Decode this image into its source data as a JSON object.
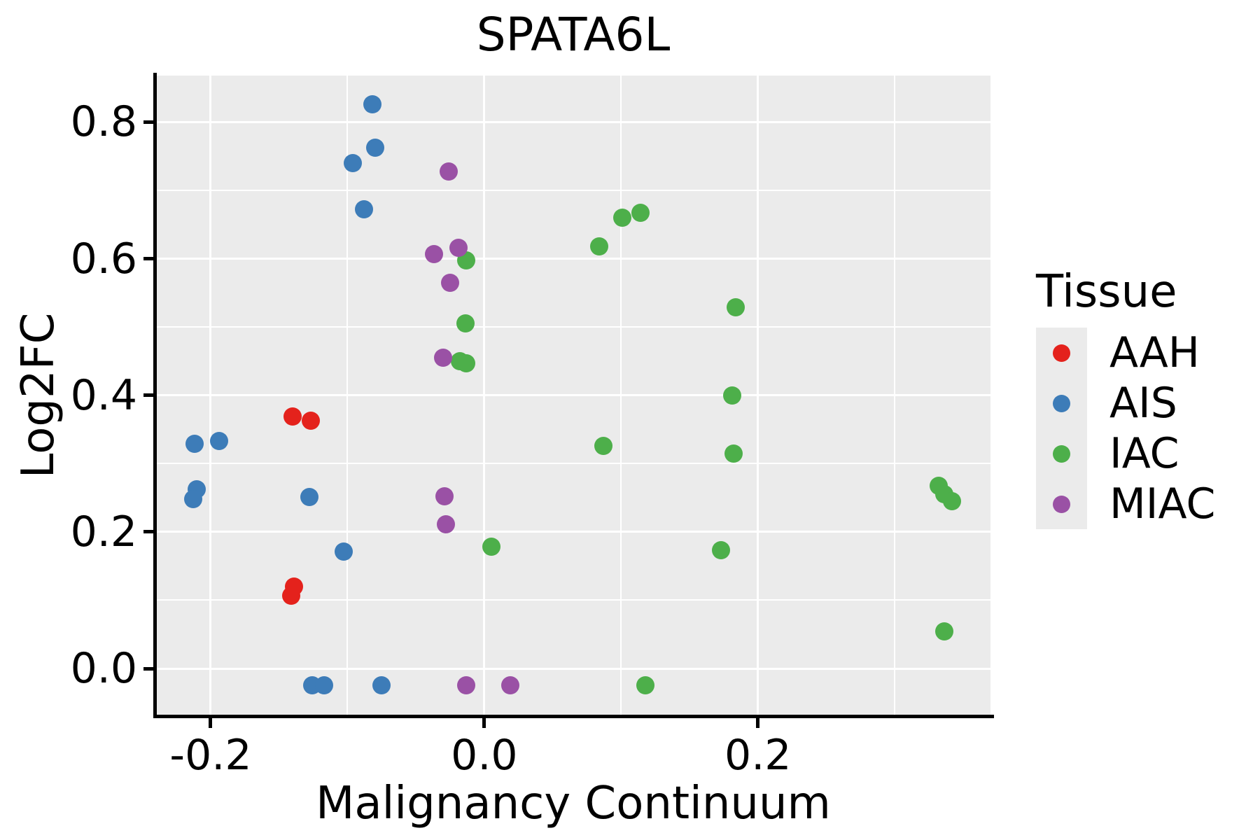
{
  "title": "SPATA6L",
  "axes": {
    "x": {
      "label": "Malignancy Continuum",
      "lim": [
        -0.2399,
        0.37
      ],
      "ticks": [
        -0.2,
        0.0,
        0.2
      ],
      "tick_labels": [
        "-0.2",
        "0.0",
        "0.2"
      ],
      "minor_ticks": [
        -0.1,
        0.1,
        0.3
      ]
    },
    "y": {
      "label": "Log2FC",
      "lim": [
        -0.0676,
        0.868
      ],
      "ticks": [
        0.0,
        0.2,
        0.4,
        0.6,
        0.8
      ],
      "tick_labels": [
        "0.0",
        "0.2",
        "0.4",
        "0.6",
        "0.8"
      ],
      "minor_ticks": [
        0.1,
        0.3,
        0.5,
        0.7
      ]
    }
  },
  "legend": {
    "title": "Tissue"
  },
  "style": {
    "panel_background": "#EBEBEB",
    "gridline_color": "#FFFFFF",
    "axis_color": "#000000"
  },
  "chart_data": {
    "type": "scatter",
    "title": "SPATA6L",
    "xlabel": "Malignancy Continuum",
    "ylabel": "Log2FC",
    "xlim": [
      -0.2399,
      0.37
    ],
    "ylim": [
      -0.0676,
      0.868
    ],
    "grid": "on",
    "legend_position": "right",
    "series": [
      {
        "name": "AAH",
        "color": "#E4221C",
        "points": [
          [
            -0.14,
            0.369
          ],
          [
            -0.127,
            0.363
          ],
          [
            -0.139,
            0.12
          ],
          [
            -0.141,
            0.107
          ]
        ]
      },
      {
        "name": "AIS",
        "color": "#3D7CB8",
        "points": [
          [
            -0.082,
            0.826
          ],
          [
            -0.08,
            0.762
          ],
          [
            -0.096,
            0.74
          ],
          [
            -0.088,
            0.672
          ],
          [
            -0.212,
            0.329
          ],
          [
            -0.194,
            0.333
          ],
          [
            -0.21,
            0.262
          ],
          [
            -0.213,
            0.248
          ],
          [
            -0.128,
            0.251
          ],
          [
            -0.103,
            0.171
          ],
          [
            -0.126,
            -0.025
          ],
          [
            -0.117,
            -0.025
          ],
          [
            -0.075,
            -0.025
          ]
        ]
      },
      {
        "name": "IAC",
        "color": "#4DAF4A",
        "points": [
          [
            -0.013,
            0.597
          ],
          [
            -0.014,
            0.505
          ],
          [
            -0.018,
            0.45
          ],
          [
            -0.013,
            0.447
          ],
          [
            0.005,
            0.178
          ],
          [
            0.101,
            0.66
          ],
          [
            0.114,
            0.667
          ],
          [
            0.084,
            0.618
          ],
          [
            0.087,
            0.326
          ],
          [
            0.184,
            0.529
          ],
          [
            0.181,
            0.4
          ],
          [
            0.182,
            0.315
          ],
          [
            0.173,
            0.173
          ],
          [
            0.332,
            0.268
          ],
          [
            0.336,
            0.255
          ],
          [
            0.342,
            0.245
          ],
          [
            0.336,
            0.054
          ],
          [
            0.118,
            -0.025
          ]
        ]
      },
      {
        "name": "MIAC",
        "color": "#9A51A5",
        "points": [
          [
            -0.026,
            0.728
          ],
          [
            -0.037,
            0.607
          ],
          [
            -0.019,
            0.616
          ],
          [
            -0.025,
            0.565
          ],
          [
            -0.03,
            0.455
          ],
          [
            -0.029,
            0.252
          ],
          [
            -0.028,
            0.211
          ],
          [
            -0.013,
            -0.025
          ],
          [
            0.019,
            -0.025
          ]
        ]
      }
    ]
  }
}
